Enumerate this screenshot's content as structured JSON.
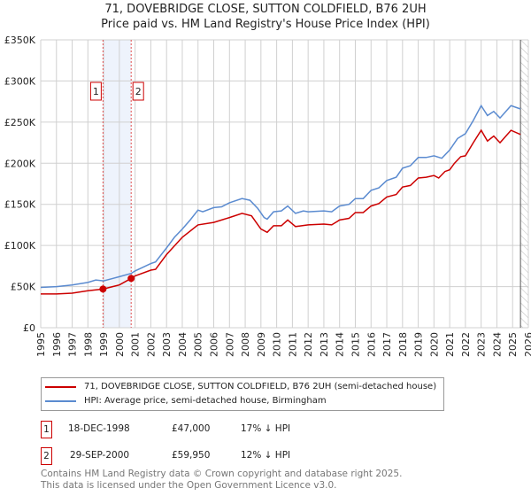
{
  "title_line1": "71, DOVEBRIDGE CLOSE, SUTTON COLDFIELD, B76 2UH",
  "title_line2": "Price paid vs. HM Land Registry's House Price Index (HPI)",
  "chart_data": {
    "type": "line",
    "title": "71, DOVEBRIDGE CLOSE, SUTTON COLDFIELD, B76 2UH - Price paid vs. HM Land Registry's House Price Index (HPI)",
    "xlim": [
      1995,
      2026
    ],
    "ylim": [
      0,
      350000
    ],
    "x_ticks": [
      "1995",
      "1996",
      "1997",
      "1998",
      "1999",
      "2000",
      "2001",
      "2002",
      "2003",
      "2004",
      "2005",
      "2006",
      "2007",
      "2008",
      "2009",
      "2010",
      "2011",
      "2012",
      "2013",
      "2014",
      "2015",
      "2016",
      "2017",
      "2018",
      "2019",
      "2020",
      "2021",
      "2022",
      "2023",
      "2024",
      "2025",
      "2026"
    ],
    "y_ticks": [
      {
        "v": 0,
        "label": "£0"
      },
      {
        "v": 50000,
        "label": "£50K"
      },
      {
        "v": 100000,
        "label": "£100K"
      },
      {
        "v": 150000,
        "label": "£150K"
      },
      {
        "v": 200000,
        "label": "£200K"
      },
      {
        "v": 250000,
        "label": "£250K"
      },
      {
        "v": 300000,
        "label": "£300K"
      },
      {
        "v": 350000,
        "label": "£350K"
      }
    ],
    "grid": true,
    "series": [
      {
        "name": "71, DOVEBRIDGE CLOSE, SUTTON COLDFIELD, B76 2UH (semi-detached house)",
        "color": "#cc0000",
        "x": [
          1995,
          1996,
          1997,
          1998,
          1998.96,
          2000,
          2000.75,
          2001,
          2002,
          2002.3,
          2003,
          2004,
          2005,
          2006,
          2007,
          2007.8,
          2008.4,
          2009,
          2009.4,
          2009.8,
          2010.3,
          2010.7,
          2011.2,
          2012,
          2013,
          2013.5,
          2014,
          2014.6,
          2015,
          2015.5,
          2016,
          2016.5,
          2017,
          2017.6,
          2018,
          2018.5,
          2019,
          2019.5,
          2020,
          2020.3,
          2020.7,
          2021,
          2021.3,
          2021.7,
          2022,
          2022.5,
          2023,
          2023.4,
          2023.8,
          2024.2,
          2024.9,
          2025.5
        ],
        "y": [
          41000,
          41000,
          42000,
          45000,
          47000,
          52000,
          59950,
          63000,
          70000,
          71000,
          89000,
          110000,
          125000,
          128000,
          134000,
          139000,
          136000,
          120000,
          116000,
          124000,
          124000,
          131000,
          123000,
          125000,
          126000,
          125000,
          131000,
          133000,
          140000,
          140000,
          148000,
          151000,
          159000,
          162000,
          171000,
          173000,
          182000,
          183000,
          185000,
          182000,
          190000,
          192000,
          200000,
          208000,
          209000,
          225000,
          240000,
          227000,
          233000,
          225000,
          240000,
          235000
        ]
      },
      {
        "name": "HPI: Average price, semi-detached house, Birmingham",
        "color": "#5b8bd0",
        "x": [
          1995,
          1996,
          1997,
          1998,
          1998.5,
          1999,
          2000,
          2000.75,
          2001,
          2002,
          2002.3,
          2003,
          2003.5,
          2004,
          2004.5,
          2005,
          2005.3,
          2006,
          2006.5,
          2007,
          2007.8,
          2008.3,
          2008.8,
          2009.2,
          2009.4,
          2009.8,
          2010.3,
          2010.7,
          2011.2,
          2011.7,
          2012,
          2013,
          2013.5,
          2014,
          2014.6,
          2015,
          2015.5,
          2016,
          2016.5,
          2017,
          2017.6,
          2018,
          2018.5,
          2019,
          2019.5,
          2020,
          2020.5,
          2021,
          2021.5,
          2022,
          2022.5,
          2023,
          2023.4,
          2023.8,
          2024.2,
          2024.9,
          2025.5
        ],
        "y": [
          49000,
          50000,
          52000,
          55000,
          58000,
          57000,
          62000,
          66000,
          69000,
          78000,
          80000,
          97000,
          110000,
          120000,
          131000,
          143000,
          141000,
          146000,
          147000,
          152000,
          157000,
          155000,
          145000,
          134000,
          132000,
          141000,
          142000,
          148000,
          139000,
          142000,
          141000,
          142000,
          141000,
          148000,
          150000,
          157000,
          157000,
          167000,
          170000,
          179000,
          183000,
          194000,
          197000,
          207000,
          207000,
          209000,
          206000,
          216000,
          230000,
          236000,
          252000,
          270000,
          258000,
          263000,
          255000,
          270000,
          266000
        ]
      }
    ],
    "sales": [
      {
        "id": "1",
        "x": 1998.96,
        "y": 47000
      },
      {
        "id": "2",
        "x": 2000.75,
        "y": 59950
      }
    ],
    "shaded_range": [
      1998.96,
      2000.75
    ],
    "hatched_from": 2025.5,
    "legend_position": "bottom"
  },
  "legend": {
    "red_label": "71, DOVEBRIDGE CLOSE, SUTTON COLDFIELD, B76 2UH (semi-detached house)",
    "blue_label": "HPI: Average price, semi-detached house, Birmingham"
  },
  "transactions": [
    {
      "id": "1",
      "date": "18-DEC-1998",
      "price": "£47,000",
      "hpi": "17% ↓ HPI"
    },
    {
      "id": "2",
      "date": "29-SEP-2000",
      "price": "£59,950",
      "hpi": "12% ↓ HPI"
    }
  ],
  "footer": {
    "line1": "Contains HM Land Registry data © Crown copyright and database right 2025.",
    "line2": "This data is licensed under the Open Government Licence v3.0."
  }
}
